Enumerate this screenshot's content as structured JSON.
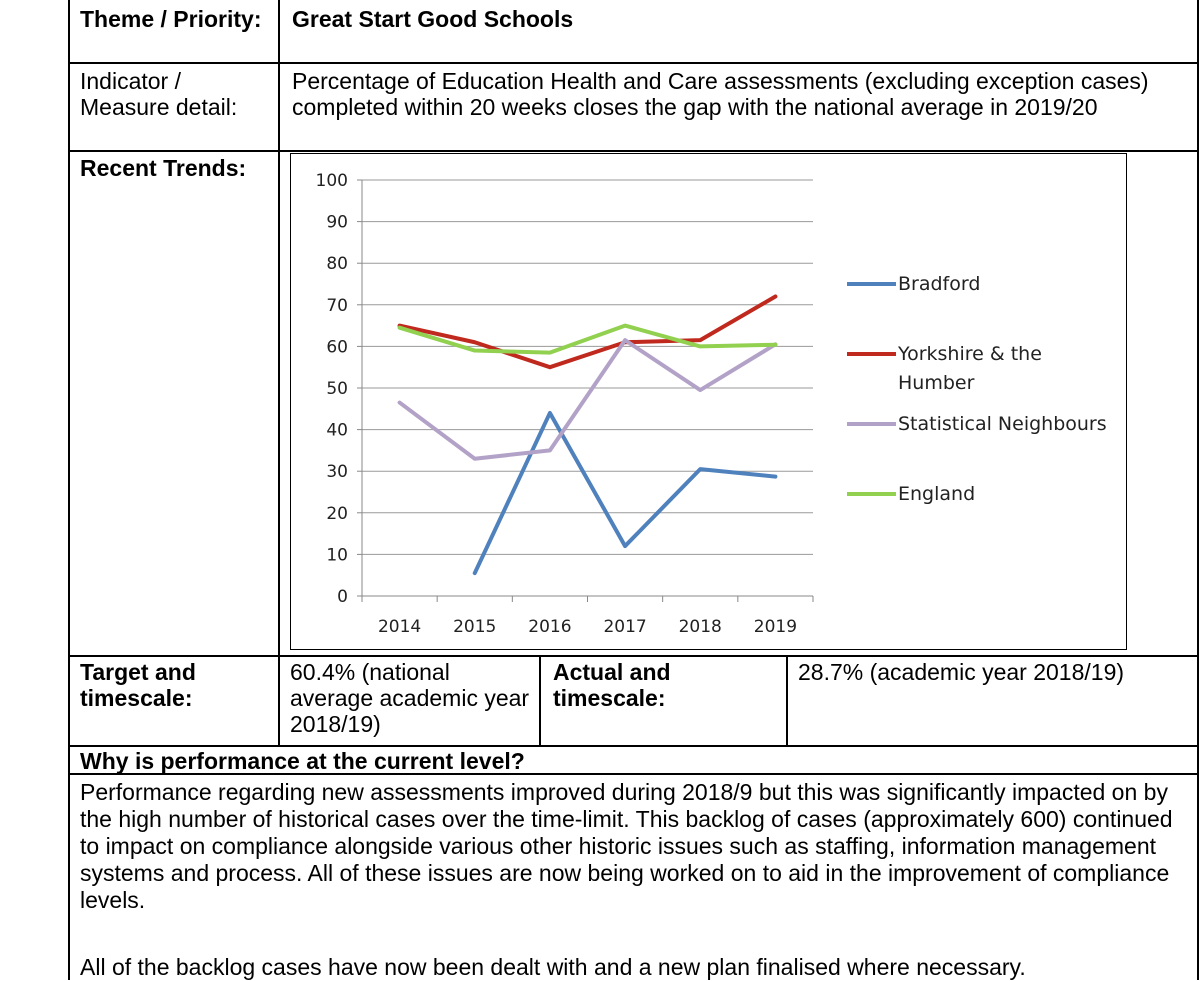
{
  "theme": {
    "label": "Theme / Priority:",
    "value": "Great Start Good Schools"
  },
  "indicator": {
    "label": "Indicator / Measure detail:",
    "value": "Percentage of Education Health and Care assessments (excluding exception cases) completed within 20 weeks closes the gap with the national average in 2019/20"
  },
  "trends": {
    "label": "Recent Trends:"
  },
  "target": {
    "label": "Target and timescale:",
    "value": "60.4% (national average academic year 2018/19)"
  },
  "actual": {
    "label": "Actual and timescale:",
    "value": "28.7% (academic year 2018/19)"
  },
  "why": {
    "heading": "Why is performance at the current level?",
    "paragraph1": "Performance regarding new assessments improved during 2018/9 but this was significantly impacted on by the high number of historical cases over the time-limit. This backlog of cases (approximately 600) continued to impact on compliance alongside various other historic issues such as staffing, information management systems and process. All of these issues are now being worked on to aid in the improvement of compliance levels.",
    "paragraph2": "All of the backlog cases have now been dealt with and a new plan finalised where necessary."
  },
  "chart_data": {
    "type": "line",
    "title": "",
    "xlabel": "",
    "ylabel": "",
    "categories": [
      "2014",
      "2015",
      "2016",
      "2017",
      "2018",
      "2019"
    ],
    "ylim": [
      0,
      100
    ],
    "yticks": [
      0,
      10,
      20,
      30,
      40,
      50,
      60,
      70,
      80,
      90,
      100
    ],
    "grid": true,
    "legend_position": "right",
    "series": [
      {
        "name": "Bradford",
        "color": "#4F81BD",
        "values": [
          null,
          5.5,
          44,
          12,
          30.5,
          28.7
        ]
      },
      {
        "name": "Yorkshire & the Humber",
        "color": "#C0291D",
        "values": [
          65,
          61,
          55,
          61,
          61.5,
          72
        ]
      },
      {
        "name": "Statistical Neighbours",
        "color": "#B3A2C7",
        "values": [
          46.5,
          33,
          35,
          61.5,
          49.5,
          60.5
        ]
      },
      {
        "name": "England",
        "color": "#92D050",
        "values": [
          64.5,
          59,
          58.5,
          65,
          60,
          60.4
        ]
      }
    ]
  }
}
